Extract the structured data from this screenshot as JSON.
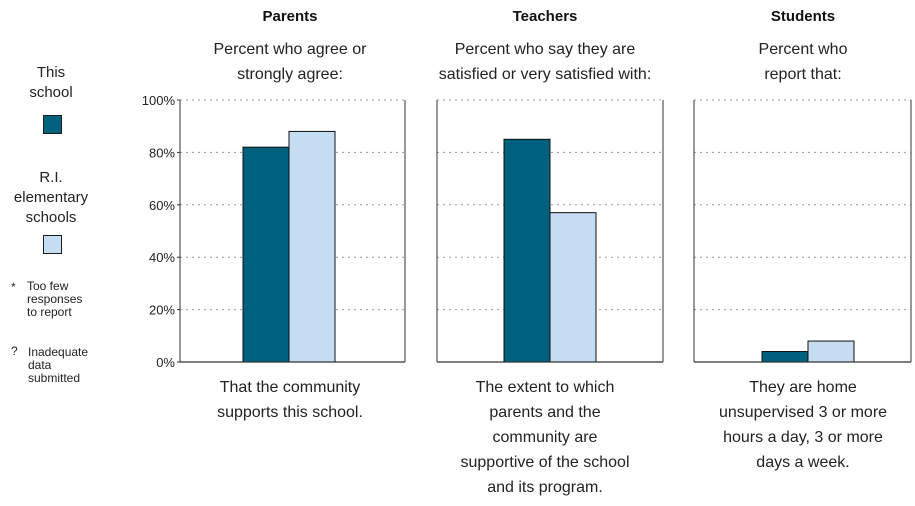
{
  "colors": {
    "this_school": "#00617f",
    "ri_schools": "#c5ddf3",
    "axis": "#333333",
    "grid": "#9a9a9a"
  },
  "legend": {
    "this_school_lines": [
      "This",
      "school"
    ],
    "ri_lines": [
      "R.I.",
      "elementary",
      "schools"
    ],
    "note_too_few": {
      "mark": "*",
      "lines": [
        "Too few",
        "responses",
        "to report"
      ]
    },
    "note_inadequate": {
      "mark": "?",
      "lines": [
        "Inadequate",
        "data",
        "submitted"
      ]
    }
  },
  "y_axis": {
    "ticks": [
      "0%",
      "20%",
      "40%",
      "60%",
      "80%",
      "100%"
    ]
  },
  "panels": [
    {
      "title": "Parents",
      "subtitle_lines": [
        "Percent who agree or",
        "strongly agree:"
      ],
      "caption_lines": [
        "That the community",
        "supports this school."
      ]
    },
    {
      "title": "Teachers",
      "subtitle_lines": [
        "Percent who say they are",
        "satisfied or very satisfied with:"
      ],
      "caption_lines": [
        "The extent to which",
        "parents and the",
        "community are",
        "supportive of the school",
        "and its program."
      ]
    },
    {
      "title": "Students",
      "subtitle_lines": [
        "Percent who",
        "report that:"
      ],
      "caption_lines": [
        "They are home",
        "unsupervised 3 or more",
        "hours a day, 3 or more",
        "days a week."
      ]
    }
  ],
  "chart_data": [
    {
      "type": "bar",
      "title": "Parents",
      "categories": [
        "That the community supports this school."
      ],
      "series": [
        {
          "name": "This school",
          "values": [
            82
          ]
        },
        {
          "name": "R.I. elementary schools",
          "values": [
            88
          ]
        }
      ],
      "ylim": [
        0,
        100
      ],
      "yticks": [
        0,
        20,
        40,
        60,
        80,
        100
      ],
      "grid": true
    },
    {
      "type": "bar",
      "title": "Teachers",
      "categories": [
        "The extent to which parents and the community are supportive of the school and its program."
      ],
      "series": [
        {
          "name": "This school",
          "values": [
            85
          ]
        },
        {
          "name": "R.I. elementary schools",
          "values": [
            57
          ]
        }
      ],
      "ylim": [
        0,
        100
      ],
      "yticks": [
        0,
        20,
        40,
        60,
        80,
        100
      ],
      "grid": true
    },
    {
      "type": "bar",
      "title": "Students",
      "categories": [
        "They are home unsupervised 3 or more hours a day, 3 or more days a week."
      ],
      "series": [
        {
          "name": "This school",
          "values": [
            4
          ]
        },
        {
          "name": "R.I. elementary schools",
          "values": [
            8
          ]
        }
      ],
      "ylim": [
        0,
        100
      ],
      "yticks": [
        0,
        20,
        40,
        60,
        80,
        100
      ],
      "grid": true
    }
  ]
}
